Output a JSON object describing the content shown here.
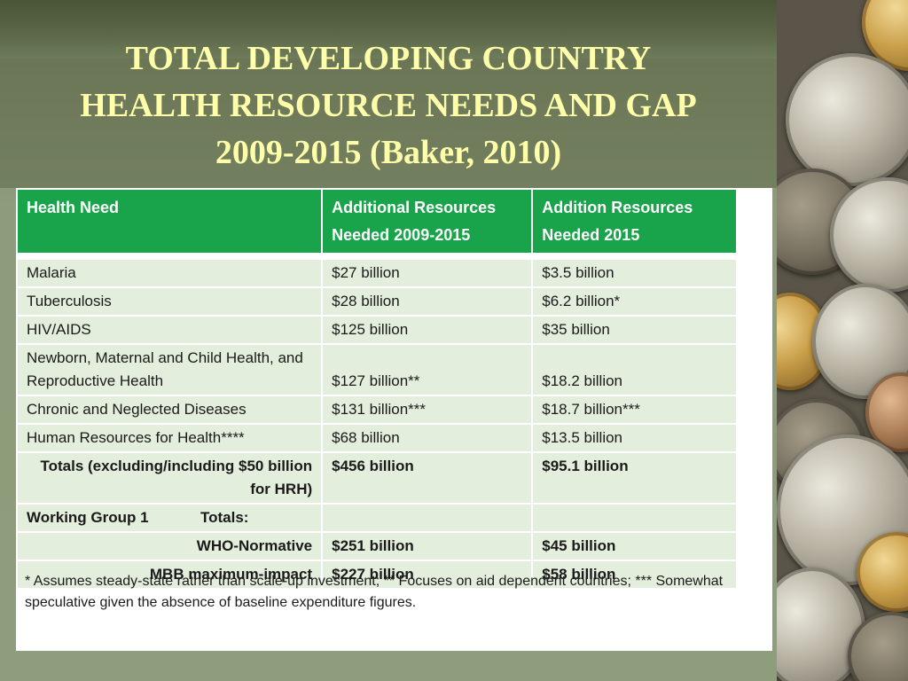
{
  "slide": {
    "title_lines": [
      "TOTAL DEVELOPING COUNTRY",
      "HEALTH RESOURCE NEEDS AND GAP",
      "2009-2015 (Baker, 2010)"
    ]
  },
  "table": {
    "headers": {
      "need": "Health Need",
      "additional_2009_2015": "Additional Resources Needed 2009-2015",
      "addition_2015": "Addition Resources Needed 2015"
    },
    "rows": [
      {
        "need": "Malaria",
        "total": "$27 billion",
        "year2015": "$3.5 billion"
      },
      {
        "need": "Tuberculosis",
        "total": "$28 billion",
        "year2015": "$6.2 billion*"
      },
      {
        "need": "HIV/AIDS",
        "total": "$125 billion",
        "year2015": "$35 billion"
      },
      {
        "need": "Newborn, Maternal and Child Health, and Reproductive Health",
        "total": "$127 billion**",
        "year2015": "$18.2 billion"
      },
      {
        "need": "Chronic and Neglected Diseases",
        "total": "$131 billion***",
        "year2015": "$18.7 billion***"
      },
      {
        "need": "Human Resources for Health****",
        "total": "$68 billion",
        "year2015": "$13.5 billion"
      }
    ],
    "totals": {
      "label": "Totals (excluding/including $50 billion for HRH)",
      "total": "$456 billion",
      "year2015": "$95.1 billion"
    },
    "working_group": {
      "label": "Working Group 1",
      "totals_label": "Totals:",
      "rows": [
        {
          "label": "WHO-Normative",
          "total": "$251 billion",
          "year2015": "$45 billion"
        },
        {
          "label": "MBB maximum-impact",
          "total": "$227 billion",
          "year2015": "$58 billion"
        }
      ]
    },
    "footnote": "* Assumes steady-state rather than scale-up investment; ** Focuses on aid dependent countries; *** Somewhat speculative given the absence of baseline expenditure figures."
  },
  "colors": {
    "title_text": "#ffffaa",
    "header_green": "#19a34a",
    "row_fill": "#e3eedc",
    "background_green": "#8e9d7b"
  }
}
